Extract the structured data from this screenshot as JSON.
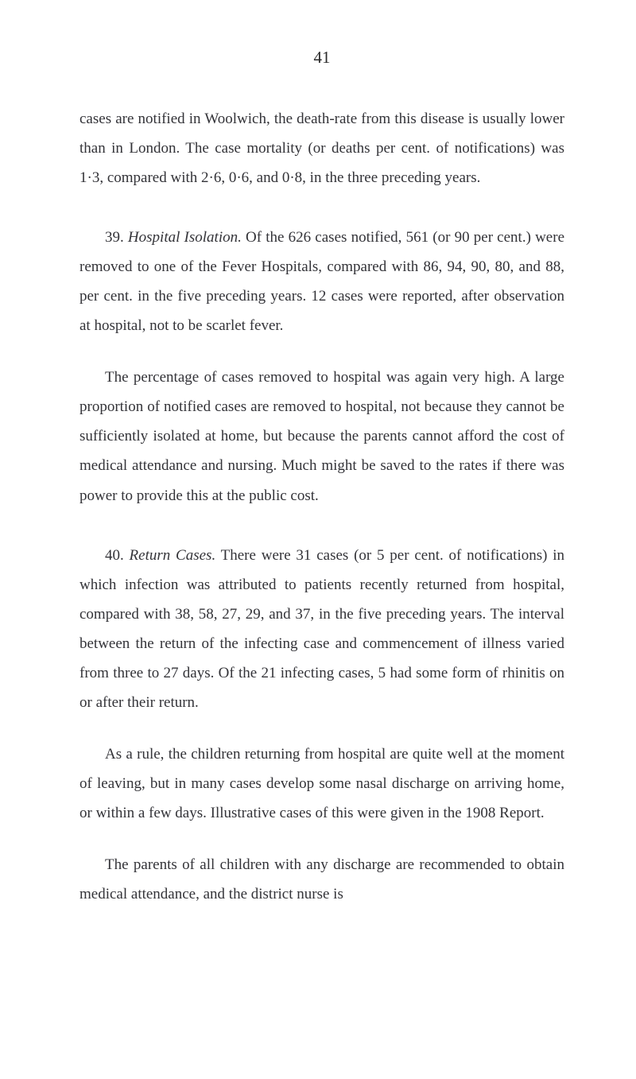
{
  "pageNumber": "41",
  "paragraphs": {
    "p1": "cases are notified in Woolwich, the death-rate from this disease is usually lower than in London. The case mortality (or deaths per cent. of notifications) was 1·3, compared with 2·6, 0·6, and 0·8, in the three preceding years.",
    "p2_num": "39. ",
    "p2_title": "Hospital Isolation.",
    "p2_rest": " Of the 626 cases notified, 561 (or 90 per cent.) were removed to one of the Fever Hospitals, compared with 86, 94, 90, 80, and 88, per cent. in the five preceding years. 12 cases were reported, after observation at hospital, not to be scarlet fever.",
    "p3": "The percentage of cases removed to hospital was again very high. A large proportion of notified cases are removed to hospital, not because they cannot be sufficiently isolated at home, but because the parents cannot afford the cost of medical attendance and nursing. Much might be saved to the rates if there was power to provide this at the public cost.",
    "p4_num": "40. ",
    "p4_title": "Return Cases.",
    "p4_rest": " There were 31 cases (or 5 per cent. of notifications) in which infection was attributed to patients recently returned from hospital, compared with 38, 58, 27, 29, and 37, in the five preceding years. The interval between the return of the infecting case and commencement of illness varied from three to 27 days. Of the 21 infecting cases, 5 had some form of rhinitis on or after their return.",
    "p5": "As a rule, the children returning from hospital are quite well at the moment of leaving, but in many cases develop some nasal discharge on arriving home, or within a few days. Illustrative cases of this were given in the 1908 Report.",
    "p6": "The parents of all children with any discharge are recommended to obtain medical attendance, and the district nurse is"
  }
}
